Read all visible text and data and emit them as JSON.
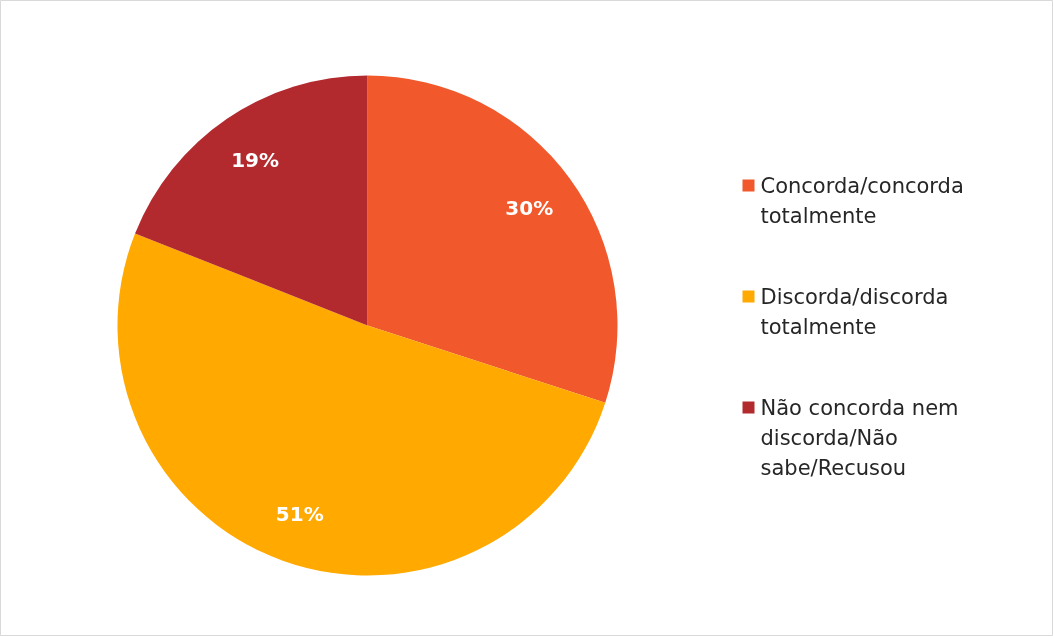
{
  "chart_data": {
    "type": "pie",
    "categories": [
      "Concorda/concorda totalmente",
      "Discorda/discorda totalmente",
      "Não concorda nem discorda/Não sabe/Recusou"
    ],
    "values": [
      30,
      51,
      19
    ],
    "colors": [
      "#f1582b",
      "#ffa901",
      "#b2292e"
    ],
    "value_labels": [
      "30%",
      "51%",
      "19%"
    ],
    "legend": "right"
  }
}
